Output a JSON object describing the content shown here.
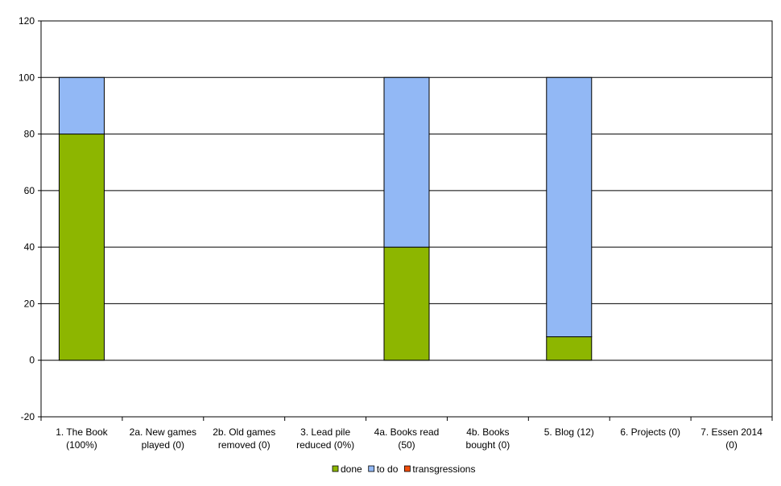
{
  "chart_data": {
    "type": "bar",
    "stacked": true,
    "categories": [
      [
        "1.  The Book",
        "(100%)"
      ],
      [
        "2a. New games",
        "played (0)"
      ],
      [
        "2b. Old games",
        "removed (0)"
      ],
      [
        "3.  Lead pile",
        "reduced (0%)"
      ],
      [
        "4a. Books read",
        "(50)"
      ],
      [
        "4b. Books",
        "bought (0)"
      ],
      [
        "5.  Blog (12)"
      ],
      [
        "6.  Projects (0)"
      ],
      [
        "7.  Essen 2014",
        "(0)"
      ]
    ],
    "series": [
      {
        "name": "done",
        "color": "#8db600",
        "values": [
          80,
          0,
          0,
          0,
          40,
          0,
          8.3,
          0,
          0
        ]
      },
      {
        "name": "to do",
        "color": "#92b8f5",
        "values": [
          20,
          0,
          0,
          0,
          60,
          0,
          91.7,
          0,
          0
        ]
      },
      {
        "name": "transgressions",
        "color": "#f04e0c",
        "values": [
          0,
          0,
          0,
          0,
          0,
          0,
          0,
          0,
          0
        ]
      }
    ],
    "ylim": [
      -20,
      120
    ],
    "yticks": [
      -20,
      0,
      20,
      40,
      60,
      80,
      100,
      120
    ],
    "grid": true,
    "legend_position": "bottom"
  }
}
